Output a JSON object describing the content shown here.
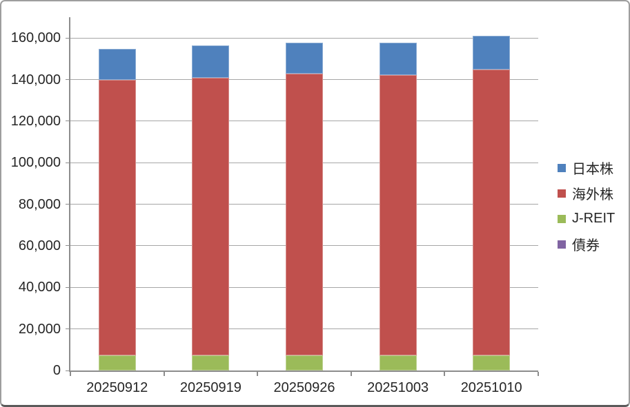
{
  "chart_data": {
    "type": "bar",
    "stacked": true,
    "title": "",
    "categories": [
      "20250912",
      "20250919",
      "20250926",
      "20251003",
      "20251010"
    ],
    "series": [
      {
        "name": "債券",
        "color": "#8064A2",
        "values": [
          0,
          0,
          0,
          0,
          0
        ]
      },
      {
        "name": "J-REIT",
        "color": "#9BBB59",
        "values": [
          7300,
          7300,
          7300,
          7300,
          7300
        ]
      },
      {
        "name": "海外株",
        "color": "#C0504D",
        "values": [
          132400,
          133700,
          135400,
          134700,
          137600
        ]
      },
      {
        "name": "日本株",
        "color": "#4F81BD",
        "values": [
          14900,
          15400,
          15200,
          15600,
          16100
        ]
      }
    ],
    "y_axis": {
      "min": 0,
      "max": 170000,
      "major_unit": 20000,
      "ticks": [
        {
          "value": 0,
          "label": "0"
        },
        {
          "value": 20000,
          "label": "20,000"
        },
        {
          "value": 40000,
          "label": "40,000"
        },
        {
          "value": 60000,
          "label": "60,000"
        },
        {
          "value": 80000,
          "label": "80,000"
        },
        {
          "value": 100000,
          "label": "100,000"
        },
        {
          "value": 120000,
          "label": "120,000"
        },
        {
          "value": 140000,
          "label": "140,000"
        },
        {
          "value": 160000,
          "label": "160,000"
        }
      ]
    },
    "legend": {
      "position": "right",
      "entries": [
        {
          "label": "日本株",
          "color": "#4F81BD"
        },
        {
          "label": "海外株",
          "color": "#C0504D"
        },
        {
          "label": "J-REIT",
          "color": "#9BBB59"
        },
        {
          "label": "債券",
          "color": "#8064A2"
        }
      ]
    },
    "grid": true
  },
  "colors": {
    "grid": "#A6A6A6",
    "axis": "#8C8C8C",
    "text": "#262626",
    "background": "#FFFFFF",
    "frame_border": "#9E9E9E"
  }
}
